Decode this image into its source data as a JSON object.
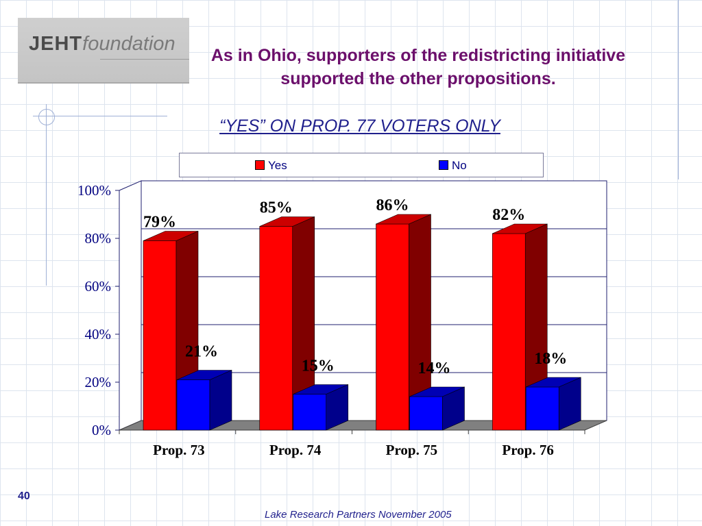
{
  "logo": {
    "brand_bold": "JEHT",
    "brand_italic": "foundation"
  },
  "title": "As in Ohio, supporters of the redistricting initiative supported the other propositions.",
  "slide_number": "40",
  "footer": "Lake Research Partners November 2005",
  "colors": {
    "yes": "#ff0000",
    "no": "#0000ff",
    "title": "#6b0f6b",
    "text": "#1f1f8c"
  },
  "chart_data": {
    "type": "bar",
    "title": "“YES” ON PROP. 77 VOTERS ONLY",
    "categories": [
      "Prop. 73",
      "Prop. 74",
      "Prop. 75",
      "Prop. 76"
    ],
    "series": [
      {
        "name": "Yes",
        "values": [
          79,
          85,
          86,
          82
        ],
        "labels": [
          "79%",
          "85%",
          "86%",
          "82%"
        ],
        "color": "#ff0000"
      },
      {
        "name": "No",
        "values": [
          21,
          15,
          14,
          18
        ],
        "labels": [
          "21%",
          "15%",
          "14%",
          "18%"
        ],
        "color": "#0000ff"
      }
    ],
    "ylim": [
      0,
      100
    ],
    "yticks": [
      "0%",
      "20%",
      "40%",
      "60%",
      "80%",
      "100%"
    ],
    "ytick_values": [
      0,
      20,
      40,
      60,
      80,
      100
    ],
    "grid": true,
    "legend": "top"
  }
}
